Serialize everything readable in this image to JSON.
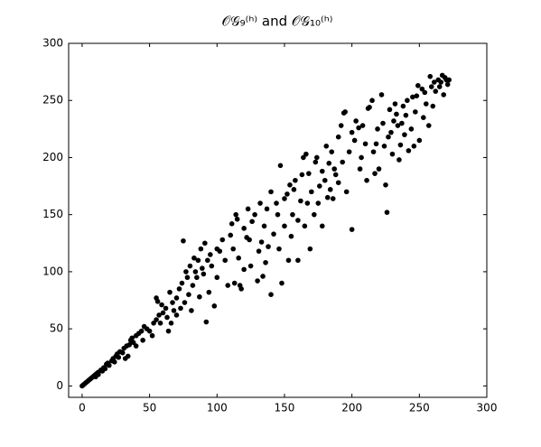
{
  "chart_data": {
    "type": "scatter",
    "title": "𝒪𝒢₉⁽ʰ⁾ and 𝒪𝒢₁₀⁽ʰ⁾",
    "color": "#000000",
    "xlim": [
      -10,
      300
    ],
    "ylim": [
      -10,
      300
    ],
    "xticks": [
      0,
      50,
      100,
      150,
      200,
      250,
      300
    ],
    "yticks": [
      0,
      50,
      100,
      150,
      200,
      250,
      300
    ],
    "x": [
      0,
      1,
      2,
      3,
      4,
      5,
      6,
      7,
      8,
      9,
      10,
      11,
      12,
      10,
      12,
      14,
      15,
      16,
      17,
      18,
      20,
      19,
      22,
      23,
      24,
      25,
      26,
      27,
      28,
      30,
      31,
      33,
      32,
      34,
      35,
      36,
      37,
      38,
      40,
      40,
      42,
      44,
      45,
      46,
      48,
      50,
      52,
      53,
      55,
      55,
      56,
      57,
      58,
      59,
      60,
      62,
      63,
      64,
      65,
      66,
      67,
      68,
      70,
      70,
      72,
      73,
      74,
      75,
      76,
      77,
      78,
      79,
      80,
      81,
      82,
      83,
      84,
      85,
      86,
      87,
      88,
      89,
      90,
      91,
      92,
      93,
      94,
      95,
      96,
      98,
      100,
      100,
      102,
      104,
      106,
      108,
      110,
      111,
      112,
      113,
      114,
      115,
      116,
      117,
      118,
      120,
      120,
      122,
      123,
      124,
      125,
      126,
      128,
      130,
      131,
      132,
      133,
      134,
      135,
      136,
      137,
      138,
      140,
      140,
      142,
      144,
      145,
      146,
      147,
      148,
      150,
      150,
      152,
      153,
      154,
      155,
      156,
      157,
      158,
      160,
      160,
      162,
      163,
      164,
      165,
      166,
      167,
      168,
      169,
      170,
      172,
      173,
      174,
      175,
      176,
      178,
      178,
      180,
      181,
      182,
      183,
      184,
      185,
      186,
      187,
      188,
      190,
      190,
      192,
      193,
      194,
      195,
      196,
      198,
      200,
      200,
      202,
      203,
      205,
      206,
      207,
      208,
      210,
      211,
      212,
      213,
      215,
      216,
      217,
      218,
      219,
      220,
      222,
      223,
      224,
      225,
      226,
      227,
      228,
      229,
      230,
      231,
      232,
      233,
      234,
      235,
      236,
      237,
      238,
      239,
      240,
      241,
      242,
      244,
      245,
      246,
      247,
      248,
      249,
      250,
      252,
      253,
      254,
      255,
      257,
      258,
      259,
      260,
      261,
      262,
      264,
      265,
      266,
      267,
      268,
      269,
      270,
      271,
      272
    ],
    "y": [
      0,
      1,
      2,
      3,
      4,
      5,
      6,
      7,
      8,
      9,
      10,
      11,
      12,
      8,
      10,
      14,
      13,
      16,
      15,
      19,
      18,
      20,
      22,
      24,
      21,
      26,
      28,
      25,
      30,
      29,
      33,
      35,
      24,
      26,
      36,
      40,
      42,
      38,
      44,
      35,
      46,
      48,
      40,
      52,
      50,
      48,
      44,
      55,
      58,
      77,
      74,
      62,
      55,
      71,
      64,
      68,
      60,
      48,
      82,
      55,
      73,
      66,
      77,
      62,
      85,
      68,
      90,
      127,
      73,
      100,
      95,
      80,
      105,
      66,
      88,
      112,
      100,
      95,
      110,
      78,
      120,
      103,
      98,
      125,
      56,
      110,
      82,
      115,
      105,
      70,
      120,
      95,
      118,
      128,
      110,
      88,
      132,
      142,
      120,
      90,
      150,
      146,
      112,
      88,
      85,
      138,
      102,
      130,
      155,
      128,
      105,
      144,
      150,
      92,
      118,
      160,
      126,
      96,
      140,
      108,
      155,
      122,
      170,
      80,
      133,
      160,
      150,
      120,
      193,
      90,
      164,
      140,
      168,
      110,
      176,
      131,
      150,
      172,
      180,
      145,
      110,
      162,
      185,
      200,
      140,
      203,
      160,
      186,
      120,
      170,
      150,
      196,
      200,
      160,
      175,
      188,
      140,
      180,
      210,
      165,
      195,
      172,
      205,
      164,
      190,
      185,
      218,
      178,
      228,
      196,
      239,
      240,
      170,
      205,
      137,
      222,
      215,
      232,
      226,
      190,
      200,
      228,
      212,
      180,
      243,
      244,
      250,
      205,
      186,
      212,
      225,
      190,
      255,
      230,
      210,
      176,
      152,
      218,
      242,
      222,
      203,
      232,
      247,
      238,
      228,
      198,
      211,
      230,
      245,
      220,
      237,
      250,
      206,
      225,
      253,
      210,
      240,
      254,
      263,
      215,
      260,
      235,
      257,
      247,
      228,
      271,
      262,
      245,
      266,
      258,
      268,
      262,
      266,
      272,
      255,
      270,
      268,
      264,
      268
    ]
  }
}
